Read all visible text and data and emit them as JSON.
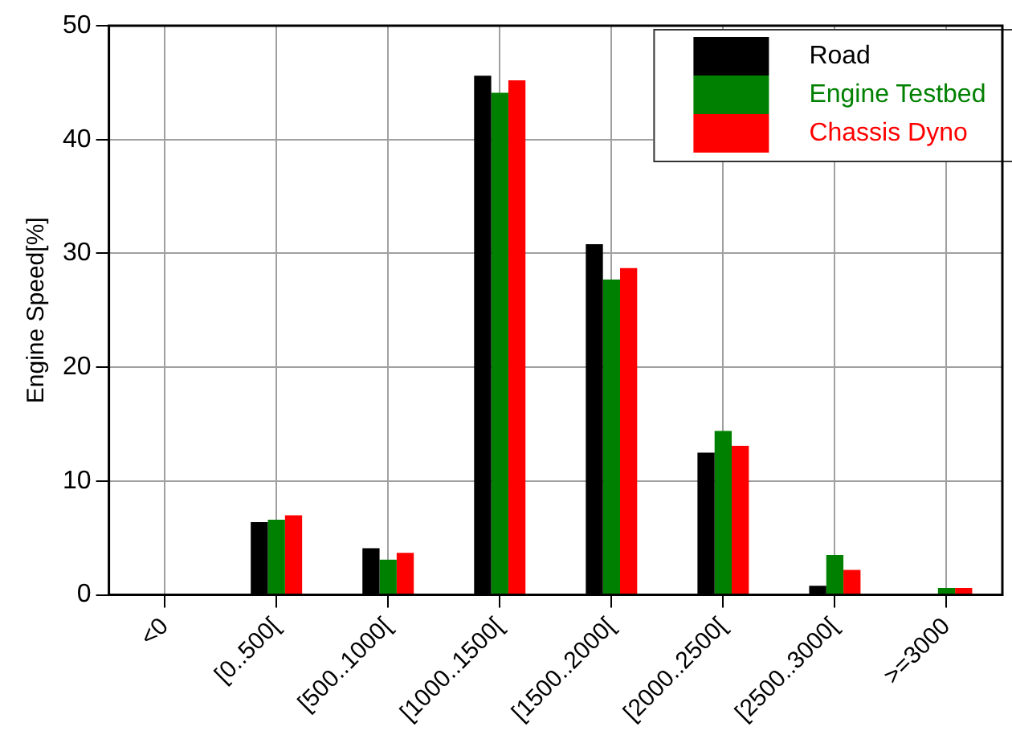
{
  "chart_data": {
    "type": "bar",
    "ylabel": "Engine Speed[%]",
    "categories": [
      "<0",
      "[0..500[",
      "[500..1000[",
      "[1000..1500[",
      "[1500..2000[",
      "[2000..2500[",
      "[2500..3000[",
      ">=3000"
    ],
    "series": [
      {
        "name": "Road",
        "color": "#000000",
        "values": [
          0,
          6.4,
          4.1,
          45.6,
          30.8,
          12.5,
          0.8,
          0
        ]
      },
      {
        "name": "Engine Testbed",
        "color": "#008000",
        "values": [
          0,
          6.6,
          3.1,
          44.1,
          27.7,
          14.4,
          3.5,
          0.6
        ]
      },
      {
        "name": "Chassis Dyno",
        "color": "#ff0000",
        "values": [
          0,
          7.0,
          3.7,
          45.2,
          28.7,
          13.1,
          2.2,
          0.6
        ]
      }
    ],
    "ylim": [
      0,
      50
    ],
    "yticks": [
      0,
      10,
      20,
      30,
      40,
      50
    ],
    "grid": true,
    "legend": "top right"
  }
}
